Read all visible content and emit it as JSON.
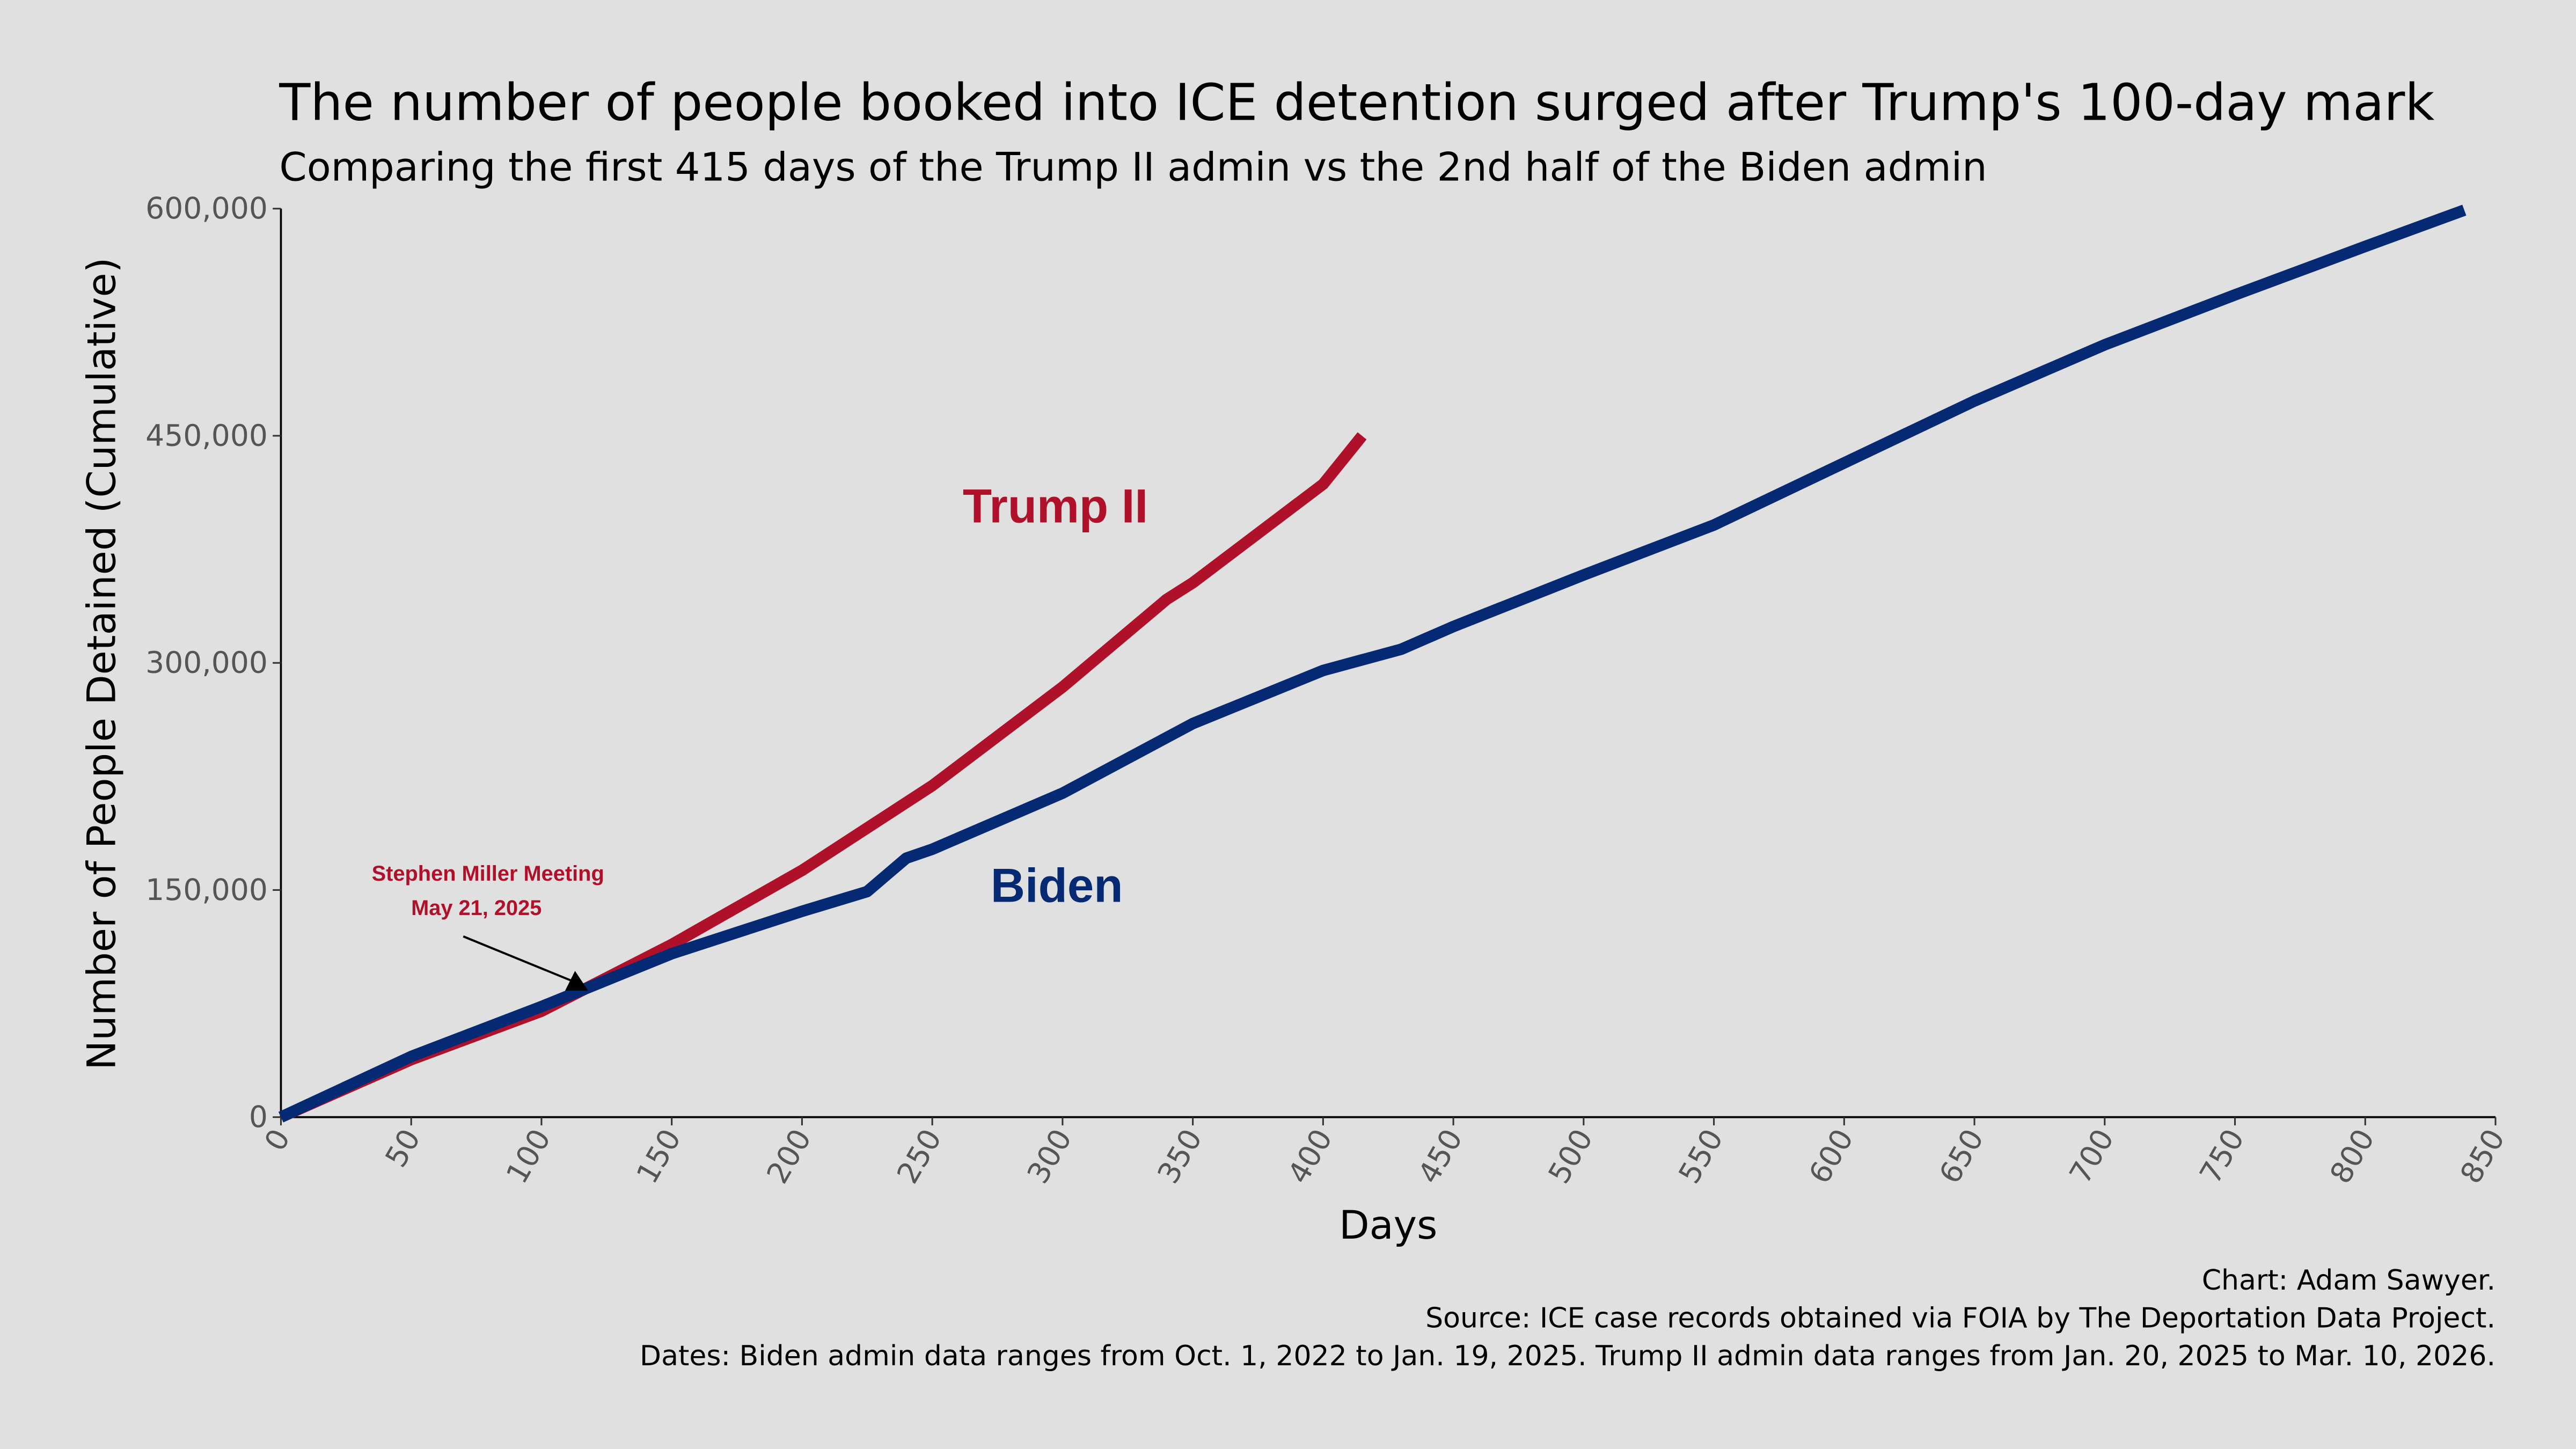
{
  "chart_data": {
    "type": "line",
    "title": "The number of people booked into ICE detention surged after Trump's 100-day mark",
    "subtitle": "Comparing the first 415 days of the Trump II admin vs the 2nd half of the Biden admin",
    "xlabel": "Days",
    "ylabel": "Number of People Detained (Cumulative)",
    "xlim": [
      0,
      850
    ],
    "ylim": [
      0,
      600000
    ],
    "xticks": [
      0,
      50,
      100,
      150,
      200,
      250,
      300,
      350,
      400,
      450,
      500,
      550,
      600,
      650,
      700,
      750,
      800,
      850
    ],
    "yticks": [
      0,
      150000,
      300000,
      450000,
      600000
    ],
    "ytick_labels": [
      "0",
      "150,000",
      "300,000",
      "450,000",
      "600,000"
    ],
    "grid": false,
    "legend": "none (direct labels)",
    "series": [
      {
        "name": "Trump II",
        "color": "#b0112a",
        "x": [
          0,
          50,
          100,
          150,
          200,
          250,
          300,
          340,
          350,
          400,
          415
        ],
        "y": [
          0,
          38000,
          70000,
          114000,
          163000,
          219000,
          284000,
          342000,
          353000,
          418000,
          450000
        ]
      },
      {
        "name": "Biden",
        "color": "#052a73",
        "x": [
          0,
          50,
          100,
          150,
          200,
          225,
          240,
          250,
          300,
          350,
          400,
          430,
          450,
          500,
          550,
          600,
          650,
          700,
          750,
          800,
          838
        ],
        "y": [
          0,
          40000,
          73000,
          108000,
          136000,
          149000,
          171000,
          177000,
          214000,
          260000,
          295000,
          309000,
          324000,
          358000,
          391000,
          432000,
          473000,
          510000,
          543000,
          575000,
          599000
        ]
      }
    ],
    "annotation": {
      "line1": "Stephen Miller Meeting",
      "line2": "May 21, 2025",
      "x": 120,
      "y": 80000
    },
    "captions": [
      "Chart: Adam Sawyer.",
      "Source: ICE case records obtained via FOIA by The Deportation Data Project.",
      "Dates: Biden admin data ranges from Oct. 1, 2022 to Jan. 19, 2025. Trump II admin data ranges from Jan. 20, 2025 to Mar. 10, 2026."
    ]
  }
}
